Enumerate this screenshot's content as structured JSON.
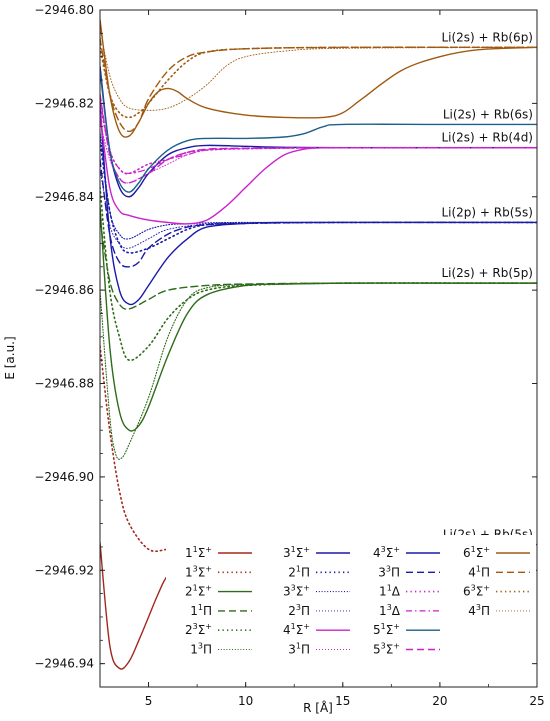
{
  "chart_data": {
    "type": "line",
    "title": "",
    "xlabel": "R [Å]",
    "ylabel": "E [a.u.]",
    "xlim": [
      2.5,
      25
    ],
    "ylim": [
      -2946.945,
      -2946.8
    ],
    "xticks": [
      5,
      10,
      15,
      20,
      25
    ],
    "yticks": [
      -2946.8,
      -2946.82,
      -2946.84,
      -2946.86,
      -2946.88,
      -2946.9,
      -2946.92,
      -2946.94
    ],
    "ytick_labels": [
      "−2946.80",
      "−2946.82",
      "−2946.84",
      "−2946.86",
      "−2946.88",
      "−2946.90",
      "−2946.92",
      "−2946.94"
    ],
    "grid": false,
    "legend_position": "bottom",
    "asymptote_labels": [
      {
        "text": "Li(2s) + Rb(6p)",
        "energy": -2946.808
      },
      {
        "text": "Li(2s) + Rb(6s)",
        "energy": -2946.8245
      },
      {
        "text": "Li(2s) + Rb(4d)",
        "energy": -2946.8295
      },
      {
        "text": "Li(2p) + Rb(5s)",
        "energy": -2946.8455
      },
      {
        "text": "Li(2s) + Rb(5p)",
        "energy": -2946.8585
      },
      {
        "text": "Li(2s) + Rb(5s)",
        "energy": -2946.9145
      }
    ],
    "series": [
      {
        "name": "1¹Σ⁺",
        "sup": "1",
        "sym": "Σ",
        "plus": true,
        "pre": "1",
        "color": "#a0281e",
        "style": "solid",
        "x": [
          2.5,
          3.0,
          3.5,
          4.0,
          4.5,
          5.0,
          5.5,
          6.0,
          7.0,
          8.0,
          10.0,
          12.0,
          15.0,
          20.0,
          25.0
        ],
        "y": [
          -2946.914,
          -2946.936,
          -2946.941,
          -2946.9395,
          -2946.935,
          -2946.93,
          -2946.925,
          -2946.921,
          -2946.917,
          -2946.9155,
          -2946.9148,
          -2946.9146,
          -2946.9145,
          -2946.9145,
          -2946.9145
        ]
      },
      {
        "name": "1³Σ⁺",
        "sup": "3",
        "sym": "Σ",
        "plus": true,
        "pre": "1",
        "color": "#a0281e",
        "style": "dotted",
        "x": [
          2.5,
          3.0,
          3.5,
          4.0,
          5.0,
          6.0,
          7.0,
          8.0,
          10.0,
          15.0,
          25.0
        ],
        "y": [
          -2946.872,
          -2946.89,
          -2946.903,
          -2946.91,
          -2946.9155,
          -2946.9155,
          -2946.915,
          -2946.9148,
          -2946.9146,
          -2946.9145,
          -2946.9145
        ]
      },
      {
        "name": "2¹Σ⁺",
        "sup": "1",
        "sym": "Σ",
        "plus": true,
        "pre": "2",
        "color": "#2e6b1a",
        "style": "solid",
        "x": [
          2.5,
          3.0,
          3.5,
          4.0,
          4.5,
          5.0,
          6.0,
          7.0,
          8.0,
          10.0,
          12.0,
          15.0,
          20.0,
          25.0
        ],
        "y": [
          -2946.842,
          -2946.872,
          -2946.886,
          -2946.89,
          -2946.889,
          -2946.885,
          -2946.874,
          -2946.865,
          -2946.861,
          -2946.859,
          -2946.8587,
          -2946.8585,
          -2946.8585,
          -2946.8585
        ]
      },
      {
        "name": "1¹Π",
        "sup": "1",
        "sym": "Π",
        "plus": false,
        "pre": "1",
        "color": "#2e6b1a",
        "style": "dashed",
        "x": [
          2.5,
          3.0,
          3.5,
          4.0,
          5.0,
          6.0,
          8.0,
          10.0,
          15.0,
          25.0
        ],
        "y": [
          -2946.845,
          -2946.858,
          -2946.863,
          -2946.864,
          -2946.862,
          -2946.86,
          -2946.859,
          -2946.8587,
          -2946.8585,
          -2946.8585
        ]
      },
      {
        "name": "2³Σ⁺",
        "sup": "3",
        "sym": "Σ",
        "plus": true,
        "pre": "2",
        "color": "#2e6b1a",
        "style": "dotted",
        "x": [
          2.5,
          3.0,
          3.5,
          4.0,
          5.0,
          6.0,
          7.0,
          8.0,
          10.0,
          15.0,
          25.0
        ],
        "y": [
          -2946.838,
          -2946.86,
          -2946.87,
          -2946.875,
          -2946.872,
          -2946.866,
          -2946.862,
          -2946.86,
          -2946.859,
          -2946.8585,
          -2946.8585
        ]
      },
      {
        "name": "1³Π",
        "sup": "3",
        "sym": "Π",
        "plus": false,
        "pre": "1",
        "color": "#2e6b1a",
        "style": "densedot",
        "x": [
          2.5,
          3.0,
          3.3,
          3.6,
          4.0,
          5.0,
          6.0,
          7.0,
          8.0,
          10.0,
          15.0,
          25.0
        ],
        "y": [
          -2946.86,
          -2946.887,
          -2946.895,
          -2946.896,
          -2946.893,
          -2946.883,
          -2946.87,
          -2946.862,
          -2946.8595,
          -2946.8588,
          -2946.8585,
          -2946.8585
        ]
      },
      {
        "name": "3¹Σ⁺",
        "sup": "1",
        "sym": "Σ",
        "plus": true,
        "pre": "3",
        "color": "#1a1aa8",
        "style": "solid",
        "x": [
          2.5,
          3.0,
          3.5,
          4.0,
          4.5,
          5.0,
          6.0,
          7.0,
          8.0,
          10.0,
          12.0,
          15.0,
          20.0,
          25.0
        ],
        "y": [
          -2946.82,
          -2946.848,
          -2946.86,
          -2946.863,
          -2946.862,
          -2946.859,
          -2946.853,
          -2946.849,
          -2946.8465,
          -2946.8457,
          -2946.8455,
          -2946.8455,
          -2946.8455,
          -2946.8455
        ]
      },
      {
        "name": "2¹Π",
        "sup": "1",
        "sym": "Π",
        "plus": false,
        "pre": "2",
        "color": "#1a1aa8",
        "style": "dotted",
        "x": [
          2.5,
          3.0,
          3.5,
          4.0,
          5.0,
          6.0,
          7.0,
          8.0,
          10.0,
          15.0,
          25.0
        ],
        "y": [
          -2946.828,
          -2946.843,
          -2946.85,
          -2946.852,
          -2946.851,
          -2946.849,
          -2946.847,
          -2946.846,
          -2946.8457,
          -2946.8455,
          -2946.8455
        ]
      },
      {
        "name": "3³Σ⁺",
        "sup": "3",
        "sym": "Σ",
        "plus": true,
        "pre": "3",
        "color": "#1a1aa8",
        "style": "densedot",
        "x": [
          2.5,
          3.0,
          3.5,
          4.0,
          5.0,
          6.0,
          7.0,
          8.0,
          10.0,
          15.0,
          25.0
        ],
        "y": [
          -2946.826,
          -2946.843,
          -2946.848,
          -2946.849,
          -2946.847,
          -2946.846,
          -2946.8458,
          -2946.8456,
          -2946.8455,
          -2946.8455,
          -2946.8455
        ]
      },
      {
        "name": "2³Π",
        "sup": "3",
        "sym": "Π",
        "plus": false,
        "pre": "2",
        "color": "#1a1aa8",
        "style": "fine",
        "x": [
          2.5,
          3.0,
          3.5,
          4.0,
          5.0,
          6.0,
          8.0,
          10.0,
          15.0,
          25.0
        ],
        "y": [
          -2946.834,
          -2946.846,
          -2946.85,
          -2946.851,
          -2946.849,
          -2946.847,
          -2946.8458,
          -2946.8456,
          -2946.8455,
          -2946.8455
        ]
      },
      {
        "name": "3³Π",
        "sup": "3",
        "sym": "Π",
        "plus": false,
        "pre": "3",
        "color": "#1a1aa8",
        "style": "dashed",
        "x": [
          2.5,
          3.0,
          3.5,
          4.0,
          4.5,
          5.0,
          6.0,
          7.0,
          8.0,
          10.0,
          15.0,
          25.0
        ],
        "y": [
          -2946.832,
          -2946.848,
          -2946.854,
          -2946.855,
          -2946.854,
          -2946.851,
          -2946.848,
          -2946.8465,
          -2946.846,
          -2946.8457,
          -2946.8455,
          -2946.8455
        ]
      },
      {
        "name": "4¹Σ⁺",
        "sup": "1",
        "sym": "Σ",
        "plus": true,
        "pre": "4",
        "color": "#cc22cc",
        "style": "solid",
        "x": [
          2.5,
          3.0,
          3.5,
          4.0,
          5.0,
          6.0,
          7.0,
          8.0,
          9.0,
          10.0,
          11.0,
          12.0,
          13.0,
          14.0,
          15.0,
          20.0,
          25.0
        ],
        "y": [
          -2946.822,
          -2946.838,
          -2946.843,
          -2946.844,
          -2946.845,
          -2946.8455,
          -2946.8458,
          -2946.845,
          -2946.842,
          -2946.838,
          -2946.834,
          -2946.831,
          -2946.8298,
          -2946.8295,
          -2946.8295,
          -2946.8295,
          -2946.8295
        ]
      },
      {
        "name": "3¹Π",
        "sup": "1",
        "sym": "Π",
        "plus": false,
        "pre": "3",
        "color": "#cc22cc",
        "style": "fine",
        "x": [
          2.5,
          3.0,
          3.5,
          4.0,
          5.0,
          6.0,
          7.0,
          8.0,
          10.0,
          15.0,
          25.0
        ],
        "y": [
          -2946.824,
          -2946.832,
          -2946.836,
          -2946.837,
          -2946.835,
          -2946.833,
          -2946.831,
          -2946.83,
          -2946.8297,
          -2946.8295,
          -2946.8295
        ]
      },
      {
        "name": "4³Σ⁺",
        "sup": "3",
        "sym": "Σ",
        "plus": true,
        "pre": "4",
        "color": "#1a1aa8",
        "style": "solid",
        "x": [
          2.5,
          3.0,
          3.5,
          4.0,
          4.5,
          5.0,
          6.0,
          7.0,
          8.0,
          10.0,
          12.0,
          15.0,
          20.0,
          25.0
        ],
        "y": [
          -2946.812,
          -2946.83,
          -2946.838,
          -2946.84,
          -2946.838,
          -2946.835,
          -2946.831,
          -2946.8295,
          -2946.829,
          -2946.8292,
          -2946.8294,
          -2946.8295,
          -2946.8295,
          -2946.8295
        ]
      },
      {
        "name": "1¹Δ",
        "sup": "1",
        "sym": "Δ",
        "plus": false,
        "pre": "1",
        "color": "#cc22cc",
        "style": "dotted",
        "x": [
          2.5,
          3.0,
          3.5,
          4.0,
          5.0,
          6.0,
          7.0,
          8.0,
          10.0,
          15.0,
          25.0
        ],
        "y": [
          -2946.82,
          -2946.83,
          -2946.834,
          -2946.835,
          -2946.833,
          -2946.832,
          -2946.8305,
          -2946.83,
          -2946.8297,
          -2946.8295,
          -2946.8295
        ]
      },
      {
        "name": "5³Σ⁺",
        "sup": "3",
        "sym": "Σ",
        "plus": true,
        "pre": "5",
        "color": "#cc22cc",
        "style": "dashed",
        "x": [
          2.5,
          3.0,
          3.5,
          4.0,
          5.0,
          6.0,
          7.0,
          8.0,
          10.0,
          15.0,
          25.0
        ],
        "y": [
          -2946.818,
          -2946.831,
          -2946.836,
          -2946.837,
          -2946.835,
          -2946.832,
          -2946.8305,
          -2946.8298,
          -2946.8296,
          -2946.8295,
          -2946.8295
        ]
      },
      {
        "name": "1³Δ",
        "sup": "3",
        "sym": "Δ",
        "plus": false,
        "pre": "1",
        "color": "#cc22cc",
        "style": "dashdot",
        "x": [
          2.5,
          3.0,
          3.5,
          4.0,
          5.0,
          6.0,
          7.0,
          8.0,
          10.0,
          15.0,
          25.0
        ],
        "y": [
          -2946.819,
          -2946.83,
          -2946.834,
          -2946.835,
          -2946.834,
          -2946.832,
          -2946.831,
          -2946.83,
          -2946.8297,
          -2946.8295,
          -2946.8295
        ]
      },
      {
        "name": "5¹Σ⁺",
        "sup": "1",
        "sym": "Σ",
        "plus": true,
        "pre": "5",
        "color": "#1f5f8a",
        "style": "solid",
        "x": [
          2.5,
          3.0,
          3.5,
          4.0,
          4.5,
          5.0,
          6.0,
          7.0,
          8.0,
          10.0,
          12.0,
          13.0,
          14.0,
          15.0,
          20.0,
          25.0
        ],
        "y": [
          -2946.813,
          -2946.83,
          -2946.837,
          -2946.839,
          -2946.837,
          -2946.834,
          -2946.83,
          -2946.828,
          -2946.8275,
          -2946.8275,
          -2946.8272,
          -2946.8265,
          -2946.825,
          -2946.8245,
          -2946.8245,
          -2946.8245
        ]
      },
      {
        "name": "6¹Σ⁺",
        "sup": "1",
        "sym": "Σ",
        "plus": true,
        "pre": "6",
        "color": "#a05a10",
        "style": "solid",
        "x": [
          2.5,
          3.0,
          3.5,
          4.0,
          4.5,
          5.0,
          5.5,
          6.0,
          6.5,
          7.0,
          8.0,
          10.0,
          12.0,
          14.0,
          15.0,
          16.0,
          18.0,
          20.0,
          22.0,
          25.0
        ],
        "y": [
          -2946.802,
          -2946.818,
          -2946.826,
          -2946.827,
          -2946.824,
          -2946.82,
          -2946.8175,
          -2946.8168,
          -2946.8175,
          -2946.819,
          -2946.821,
          -2946.8225,
          -2946.823,
          -2946.823,
          -2946.822,
          -2946.819,
          -2946.813,
          -2946.81,
          -2946.8085,
          -2946.808
        ]
      },
      {
        "name": "4¹Π",
        "sup": "1",
        "sym": "Π",
        "plus": false,
        "pre": "4",
        "color": "#a05a10",
        "style": "dashed",
        "x": [
          2.5,
          3.0,
          3.5,
          4.0,
          4.5,
          5.0,
          6.0,
          7.0,
          8.0,
          10.0,
          15.0,
          25.0
        ],
        "y": [
          -2946.806,
          -2946.818,
          -2946.824,
          -2946.826,
          -2946.824,
          -2946.819,
          -2946.813,
          -2946.81,
          -2946.809,
          -2946.8083,
          -2946.808,
          -2946.808
        ]
      },
      {
        "name": "6³Σ⁺",
        "sup": "3",
        "sym": "Σ",
        "plus": true,
        "pre": "6",
        "color": "#a05a10",
        "style": "dotted",
        "x": [
          2.5,
          3.0,
          3.5,
          4.0,
          4.5,
          5.0,
          6.0,
          7.0,
          8.0,
          10.0,
          15.0,
          25.0
        ],
        "y": [
          -2946.808,
          -2946.818,
          -2946.822,
          -2946.823,
          -2946.822,
          -2946.82,
          -2946.815,
          -2946.811,
          -2946.809,
          -2946.8083,
          -2946.808,
          -2946.808
        ]
      },
      {
        "name": "4³Π",
        "sup": "3",
        "sym": "Π",
        "plus": false,
        "pre": "4",
        "color": "#a05a10",
        "style": "fine",
        "x": [
          2.5,
          3.0,
          3.5,
          4.0,
          5.0,
          6.0,
          7.0,
          8.0,
          9.0,
          10.0,
          12.0,
          15.0,
          25.0
        ],
        "y": [
          -2946.804,
          -2946.814,
          -2946.819,
          -2946.821,
          -2946.8215,
          -2946.821,
          -2946.819,
          -2946.816,
          -2946.812,
          -2946.81,
          -2946.8088,
          -2946.8082,
          -2946.808
        ]
      }
    ],
    "legend_columns": [
      [
        "1¹Σ⁺",
        "1³Σ⁺",
        "2¹Σ⁺",
        "1¹Π",
        "2³Σ⁺",
        "1³Π"
      ],
      [
        "3¹Σ⁺",
        "2¹Π",
        "3³Σ⁺",
        "2³Π",
        "4¹Σ⁺",
        "3¹Π"
      ],
      [
        "4³Σ⁺",
        "3³Π",
        "1¹Δ",
        "1³Δ",
        "5¹Σ⁺",
        "5³Σ⁺"
      ],
      [
        "6¹Σ⁺",
        "4¹Π",
        "6³Σ⁺",
        "4³Π"
      ]
    ]
  }
}
